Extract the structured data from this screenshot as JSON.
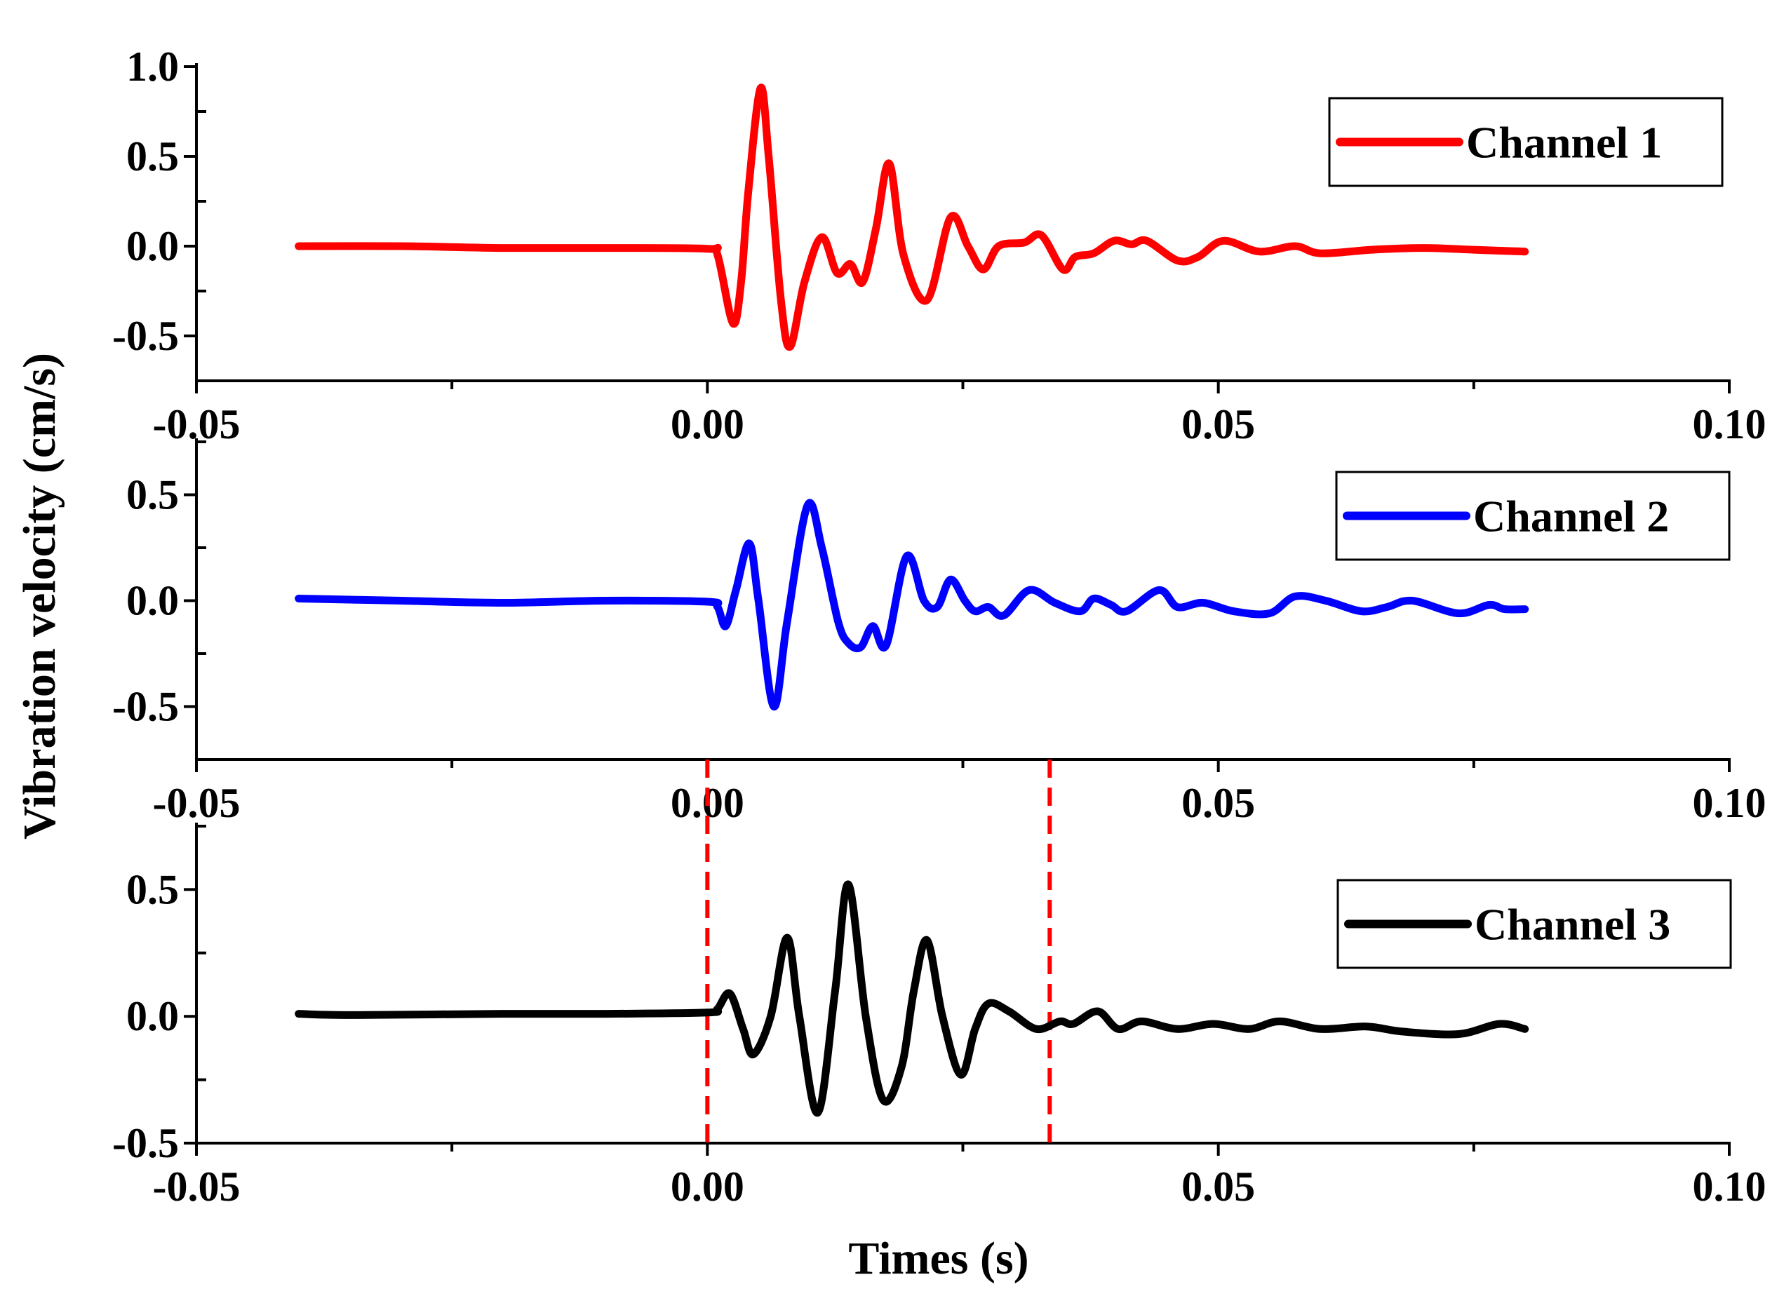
{
  "chart_data": {
    "type": "line",
    "ylabel": "Vibration velocity (cm/s)",
    "xlabel": "Times (s)",
    "xlim": [
      -0.05,
      0.1
    ],
    "xticks": [
      -0.05,
      0.0,
      0.05,
      0.1
    ],
    "xtick_labels": [
      "-0.05",
      "0.00",
      "0.05",
      "0.10"
    ],
    "panels": [
      {
        "name": "Channel 1",
        "color": "#ff0000",
        "ylim": [
          -0.75,
          1.0
        ],
        "yticks": [
          -0.5,
          0.0,
          0.5,
          1.0
        ],
        "ytick_labels": [
          "-0.5",
          "0.0",
          "0.5",
          "1.0"
        ],
        "legend": "Channel 1",
        "legend_position": "top-right",
        "series": [
          [
            -0.04,
            0.0
          ],
          [
            -0.03,
            0.0
          ],
          [
            -0.02,
            -0.01
          ],
          [
            -0.01,
            -0.01
          ],
          [
            0.0,
            -0.015
          ],
          [
            0.001,
            -0.05
          ],
          [
            0.0025,
            -0.43
          ],
          [
            0.0033,
            -0.2
          ],
          [
            0.004,
            0.3
          ],
          [
            0.0052,
            0.88
          ],
          [
            0.006,
            0.5
          ],
          [
            0.0072,
            -0.3
          ],
          [
            0.0081,
            -0.56
          ],
          [
            0.0095,
            -0.2
          ],
          [
            0.0112,
            0.05
          ],
          [
            0.0127,
            -0.15
          ],
          [
            0.014,
            -0.1
          ],
          [
            0.0152,
            -0.2
          ],
          [
            0.0165,
            0.1
          ],
          [
            0.0178,
            0.46
          ],
          [
            0.0192,
            -0.05
          ],
          [
            0.0215,
            -0.3
          ],
          [
            0.0238,
            0.16
          ],
          [
            0.0255,
            0.0
          ],
          [
            0.027,
            -0.13
          ],
          [
            0.0285,
            0.0
          ],
          [
            0.031,
            0.02
          ],
          [
            0.0327,
            0.06
          ],
          [
            0.0348,
            -0.13
          ],
          [
            0.036,
            -0.06
          ],
          [
            0.0378,
            -0.04
          ],
          [
            0.0398,
            0.03
          ],
          [
            0.0415,
            0.01
          ],
          [
            0.043,
            0.03
          ],
          [
            0.046,
            -0.08
          ],
          [
            0.048,
            -0.06
          ],
          [
            0.0505,
            0.03
          ],
          [
            0.054,
            -0.03
          ],
          [
            0.0575,
            0.0
          ],
          [
            0.06,
            -0.04
          ],
          [
            0.065,
            -0.02
          ],
          [
            0.07,
            -0.01
          ],
          [
            0.075,
            -0.02
          ],
          [
            0.08,
            -0.03
          ]
        ]
      },
      {
        "name": "Channel 2",
        "color": "#0000ff",
        "ylim": [
          -0.75,
          0.75
        ],
        "yticks": [
          -0.5,
          0.0,
          0.5
        ],
        "ytick_labels": [
          "-0.5",
          "0.0",
          "0.5"
        ],
        "legend": "Channel 2",
        "legend_position": "top-right",
        "series": [
          [
            -0.04,
            0.01
          ],
          [
            -0.03,
            0.0
          ],
          [
            -0.02,
            -0.01
          ],
          [
            -0.01,
            0.0
          ],
          [
            0.0,
            -0.005
          ],
          [
            0.001,
            -0.03
          ],
          [
            0.0018,
            -0.12
          ],
          [
            0.0028,
            0.05
          ],
          [
            0.0041,
            0.27
          ],
          [
            0.005,
            0.0
          ],
          [
            0.0065,
            -0.5
          ],
          [
            0.0078,
            -0.1
          ],
          [
            0.0098,
            0.45
          ],
          [
            0.0112,
            0.25
          ],
          [
            0.0128,
            -0.1
          ],
          [
            0.0138,
            -0.2
          ],
          [
            0.015,
            -0.22
          ],
          [
            0.0162,
            -0.12
          ],
          [
            0.0175,
            -0.21
          ],
          [
            0.0195,
            0.21
          ],
          [
            0.0212,
            0.0
          ],
          [
            0.0225,
            -0.03
          ],
          [
            0.0238,
            0.1
          ],
          [
            0.0252,
            0.0
          ],
          [
            0.0262,
            -0.05
          ],
          [
            0.0275,
            -0.03
          ],
          [
            0.029,
            -0.07
          ],
          [
            0.0315,
            0.05
          ],
          [
            0.034,
            -0.01
          ],
          [
            0.0365,
            -0.05
          ],
          [
            0.0378,
            0.01
          ],
          [
            0.0395,
            -0.02
          ],
          [
            0.041,
            -0.05
          ],
          [
            0.0442,
            0.05
          ],
          [
            0.046,
            -0.03
          ],
          [
            0.0485,
            -0.01
          ],
          [
            0.0515,
            -0.05
          ],
          [
            0.055,
            -0.06
          ],
          [
            0.0575,
            0.02
          ],
          [
            0.0605,
            0.0
          ],
          [
            0.064,
            -0.05
          ],
          [
            0.0665,
            -0.03
          ],
          [
            0.069,
            0.0
          ],
          [
            0.0735,
            -0.06
          ],
          [
            0.0765,
            -0.02
          ],
          [
            0.078,
            -0.04
          ],
          [
            0.08,
            -0.04
          ]
        ]
      },
      {
        "name": "Channel 3",
        "color": "#000000",
        "ylim": [
          -0.5,
          0.75
        ],
        "yticks": [
          -0.5,
          0.0,
          0.5
        ],
        "ytick_labels": [
          "-0.5",
          "0.0",
          "0.5"
        ],
        "legend": "Channel 3",
        "legend_position": "top-right",
        "series": [
          [
            -0.04,
            0.01
          ],
          [
            -0.035,
            0.005
          ],
          [
            -0.02,
            0.01
          ],
          [
            -0.01,
            0.01
          ],
          [
            0.0,
            0.015
          ],
          [
            0.001,
            0.03
          ],
          [
            0.0022,
            0.09
          ],
          [
            0.0035,
            -0.05
          ],
          [
            0.0045,
            -0.15
          ],
          [
            0.0062,
            0.0
          ],
          [
            0.0078,
            0.31
          ],
          [
            0.009,
            0.0
          ],
          [
            0.0108,
            -0.38
          ],
          [
            0.0125,
            0.1
          ],
          [
            0.0138,
            0.52
          ],
          [
            0.0155,
            0.0
          ],
          [
            0.0172,
            -0.33
          ],
          [
            0.019,
            -0.2
          ],
          [
            0.0202,
            0.1
          ],
          [
            0.0215,
            0.3
          ],
          [
            0.023,
            0.0
          ],
          [
            0.0248,
            -0.23
          ],
          [
            0.0262,
            -0.05
          ],
          [
            0.0275,
            0.05
          ],
          [
            0.0295,
            0.02
          ],
          [
            0.0322,
            -0.05
          ],
          [
            0.0345,
            -0.02
          ],
          [
            0.0358,
            -0.03
          ],
          [
            0.0382,
            0.02
          ],
          [
            0.0402,
            -0.05
          ],
          [
            0.0425,
            -0.02
          ],
          [
            0.046,
            -0.05
          ],
          [
            0.0495,
            -0.03
          ],
          [
            0.053,
            -0.05
          ],
          [
            0.056,
            -0.02
          ],
          [
            0.06,
            -0.05
          ],
          [
            0.0645,
            -0.04
          ],
          [
            0.068,
            -0.06
          ],
          [
            0.0735,
            -0.07
          ],
          [
            0.0775,
            -0.03
          ],
          [
            0.08,
            -0.05
          ]
        ],
        "markers": [
          {
            "type": "vline",
            "x": 0.0,
            "color": "#ff0000",
            "style": "dashed"
          },
          {
            "type": "vline",
            "x": 0.0335,
            "color": "#ff0000",
            "style": "dashed"
          }
        ]
      }
    ]
  }
}
